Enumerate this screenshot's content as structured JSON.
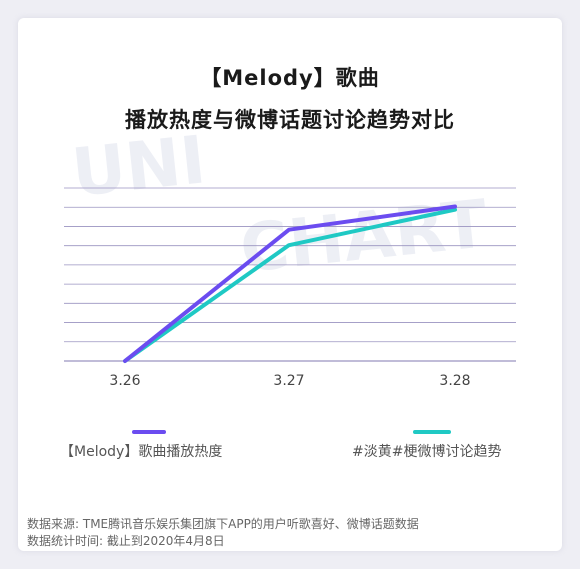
{
  "title_line1": "【Melody】歌曲",
  "title_line2": "播放热度与微博话题讨论趋势对比",
  "watermark_line1": "UNI",
  "watermark_line2": "CHART",
  "colors": {
    "series1": "#6B4CF0",
    "series2": "#1FC9C4",
    "grid": "#9a93c0"
  },
  "chart_data": {
    "type": "line",
    "x": [
      "3.26",
      "3.27",
      "3.28"
    ],
    "series": [
      {
        "name": "【Melody】歌曲播放热度",
        "values": [
          0,
          85,
          100
        ]
      },
      {
        "name": "#淡黄#梗微博讨论趋势",
        "values": [
          0,
          75,
          98
        ]
      }
    ],
    "ylim": [
      0,
      112
    ],
    "grid": true,
    "y_tick_labels": false,
    "legend": "bottom"
  },
  "footer": {
    "line1": "数据来源: TME腾讯音乐娱乐集团旗下APP的用户听歌喜好、微博话题数据",
    "line2": "数据统计时间: 截止到2020年4月8日"
  }
}
